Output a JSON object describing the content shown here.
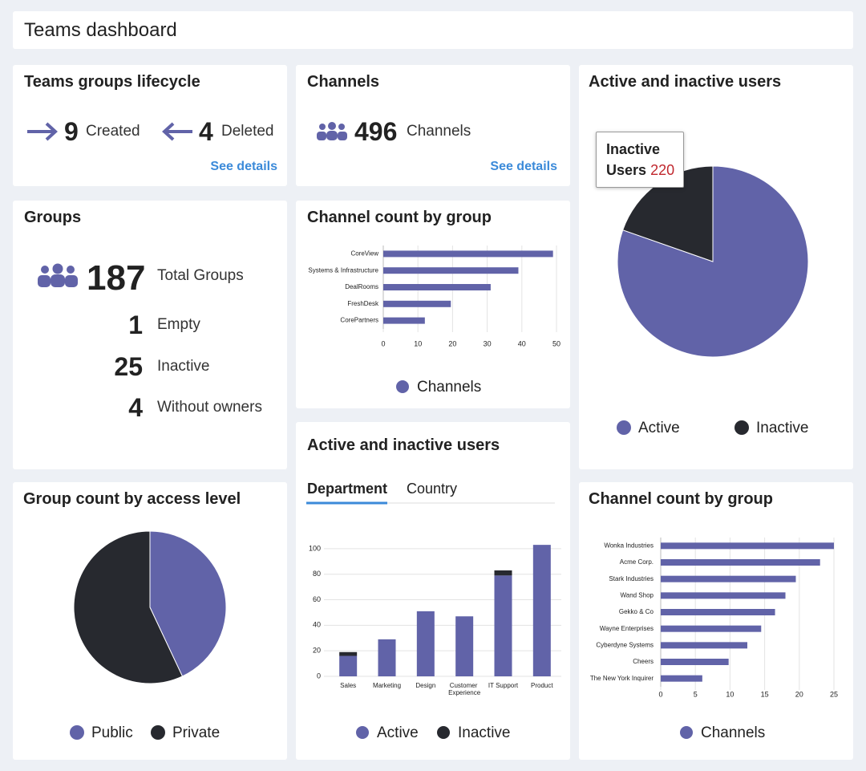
{
  "header": {
    "title": "Teams dashboard"
  },
  "lifecycle": {
    "title": "Teams groups lifecycle",
    "created": {
      "value": 9,
      "label": "Created"
    },
    "deleted": {
      "value": 4,
      "label": "Deleted"
    },
    "link": "See details"
  },
  "channels": {
    "title": "Channels",
    "value": 496,
    "label": "Channels",
    "link": "See details"
  },
  "groups": {
    "title": "Groups",
    "total": {
      "value": 187,
      "label": "Total Groups"
    },
    "stats": [
      {
        "value": 1,
        "label": "Empty"
      },
      {
        "value": 25,
        "label": "Inactive"
      },
      {
        "value": 4,
        "label": "Without owners"
      }
    ]
  },
  "chart_data": [
    {
      "type": "hbar",
      "title": "Channel count by group",
      "categories": [
        "CoreView",
        "Systems & Infrastructure",
        "DealRooms",
        "FreshDesk",
        "CorePartners"
      ],
      "series": [
        {
          "name": "Channels",
          "color": "#6163a8",
          "values": [
            49,
            39,
            31,
            19.5,
            12
          ]
        }
      ],
      "xlim": [
        0,
        50
      ],
      "xticks": [
        0,
        10,
        20,
        30,
        40,
        50
      ],
      "grid": true,
      "legend": "bottom"
    },
    {
      "type": "pie",
      "title": "Active and inactive users",
      "categories": [
        "Active",
        "Inactive"
      ],
      "values": [
        900,
        220
      ],
      "colors": [
        "#6163a8",
        "#27292f"
      ],
      "legend": "bottom",
      "tooltip": {
        "category": "Inactive",
        "label": "Users"
      }
    },
    {
      "type": "pie",
      "title": "Group count by access level",
      "categories": [
        "Public",
        "Private"
      ],
      "values": [
        43,
        57
      ],
      "colors": [
        "#6163a8",
        "#27292f"
      ],
      "legend": "bottom"
    },
    {
      "type": "stacked-bar",
      "title": "Active and inactive users",
      "tabs": [
        "Department",
        "Country"
      ],
      "active_tab": "Department",
      "categories": [
        "Sales",
        "Marketing",
        "Design",
        "Customer Experience",
        "IT Support",
        "Product"
      ],
      "series": [
        {
          "name": "Active",
          "color": "#6163a8",
          "values": [
            16,
            29,
            51,
            47,
            79,
            103
          ]
        },
        {
          "name": "Inactive",
          "color": "#27292f",
          "values": [
            3,
            0,
            0,
            0,
            4,
            0
          ]
        }
      ],
      "ylim": [
        0,
        110
      ],
      "yticks": [
        0,
        20,
        40,
        60,
        80,
        100
      ],
      "grid": true,
      "legend": "bottom"
    },
    {
      "type": "hbar",
      "title": "Channel count by group",
      "categories": [
        "Wonka Industries",
        "Acme Corp.",
        "Stark Industries",
        "Wand Shop",
        "Gekko & Co",
        "Wayne Enterprises",
        "Cyberdyne Systems",
        "Cheers",
        "The New York Inquirer"
      ],
      "series": [
        {
          "name": "Channels",
          "color": "#6163a8",
          "values": [
            25,
            23,
            19.5,
            18,
            16.5,
            14.5,
            12.5,
            9.8,
            6
          ]
        }
      ],
      "xlim": [
        0,
        25
      ],
      "xticks": [
        0,
        5,
        10,
        15,
        20,
        25
      ],
      "grid": true,
      "legend": "bottom"
    }
  ]
}
